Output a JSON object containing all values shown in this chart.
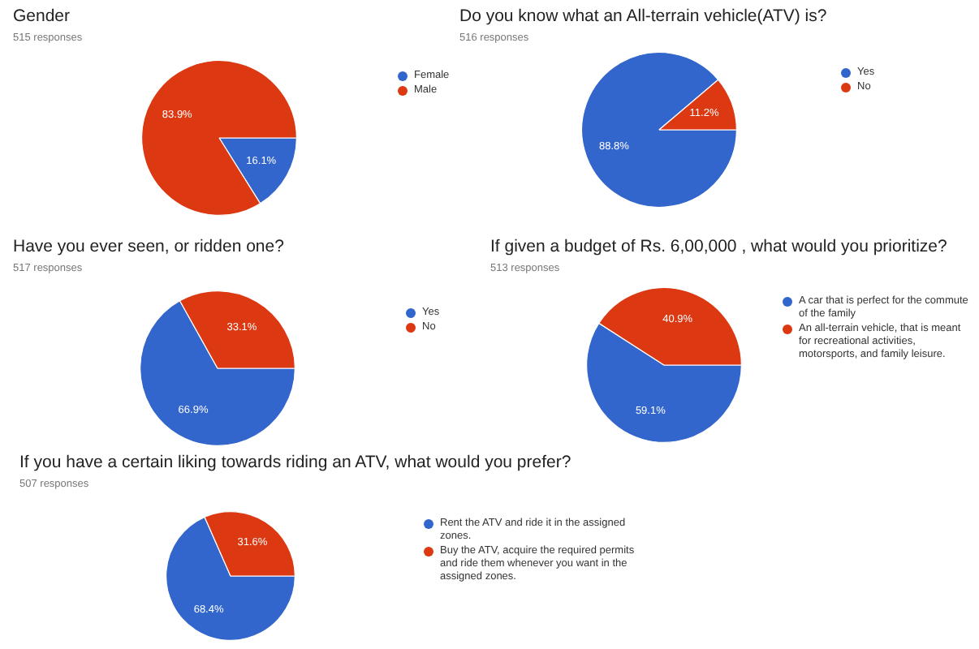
{
  "chart_data": [
    {
      "type": "pie",
      "title": "Gender",
      "subtitle": "515 responses",
      "categories": [
        "Female",
        "Male"
      ],
      "values": [
        16.1,
        83.9
      ],
      "colors": [
        "#3366cc",
        "#dc3912"
      ],
      "value_labels": [
        "16.1%",
        "83.9%"
      ],
      "legend": "right"
    },
    {
      "type": "pie",
      "title": "Do you know what an All-terrain vehicle(ATV) is?",
      "subtitle": "516 responses",
      "categories": [
        "Yes",
        "No"
      ],
      "values": [
        88.8,
        11.2
      ],
      "colors": [
        "#3366cc",
        "#dc3912"
      ],
      "value_labels": [
        "88.8%",
        "11.2%"
      ],
      "legend": "right"
    },
    {
      "type": "pie",
      "title": "Have you ever seen, or ridden one?",
      "subtitle": "517 responses",
      "categories": [
        "Yes",
        "No"
      ],
      "values": [
        66.9,
        33.1
      ],
      "colors": [
        "#3366cc",
        "#dc3912"
      ],
      "value_labels": [
        "66.9%",
        "33.1%"
      ],
      "legend": "right"
    },
    {
      "type": "pie",
      "title": "If given a budget of Rs. 6,00,000 , what would you prioritize?",
      "subtitle": "513 responses",
      "categories": [
        "A car that is perfect for the commute of the family",
        "An all-terrain vehicle, that is meant for recreational activities, motorsports, and family leisure."
      ],
      "values": [
        59.1,
        40.9
      ],
      "colors": [
        "#3366cc",
        "#dc3912"
      ],
      "value_labels": [
        "59.1%",
        "40.9%"
      ],
      "legend": "right"
    },
    {
      "type": "pie",
      "title": "If you have a certain liking towards riding an ATV, what would you prefer?",
      "subtitle": "507 responses",
      "categories": [
        "Rent the ATV and ride it in the assigned zones.",
        "Buy the ATV, acquire the required permits and ride them whenever you want in the assigned zones."
      ],
      "values": [
        68.4,
        31.6
      ],
      "colors": [
        "#3366cc",
        "#dc3912"
      ],
      "value_labels": [
        "68.4%",
        "31.6%"
      ],
      "legend": "right"
    }
  ]
}
